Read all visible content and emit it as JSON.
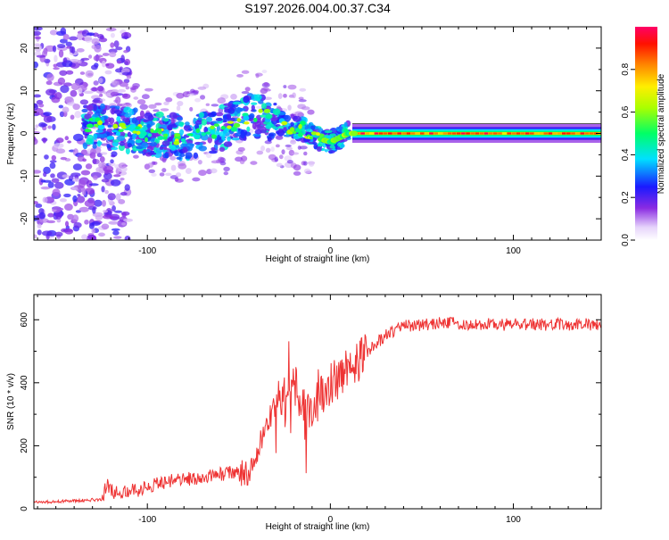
{
  "title": "S197.2026.004.00.37.C34",
  "chart_data": [
    {
      "type": "heatmap",
      "xlabel": "Height of straight line (km)",
      "ylabel": "Frequency (Hz)",
      "xlim": [
        -162,
        148
      ],
      "ylim": [
        -25,
        25
      ],
      "xticks": [
        -100,
        0,
        100
      ],
      "xtick_labels": [
        "-100",
        "0",
        "100"
      ],
      "yticks": [
        -20,
        -10,
        0,
        10,
        20
      ],
      "ytick_labels": [
        "-20",
        "-10",
        "0",
        "10",
        "20"
      ],
      "colorbar": {
        "label": "Normalized spectral amplitude",
        "range": [
          0,
          1
        ],
        "ticks": [
          0.0,
          0.2,
          0.4,
          0.6,
          0.8
        ],
        "tick_labels": [
          "0.0",
          "0.2",
          "0.4",
          "0.6",
          "0.8"
        ]
      },
      "ridge_frequency": {
        "x": [
          -135,
          -120,
          -100,
          -80,
          -60,
          -45,
          -35,
          -25,
          -15,
          -8,
          0,
          5,
          10,
          15,
          148
        ],
        "y": [
          2,
          1.5,
          0,
          -1,
          1,
          4,
          4,
          2,
          1,
          -1,
          -2,
          -1,
          0,
          0,
          0
        ]
      }
    },
    {
      "type": "line",
      "xlabel": "Height of straight line (km)",
      "ylabel": "SNR (10 * v/v)",
      "xlim": [
        -162,
        148
      ],
      "ylim": [
        0,
        680
      ],
      "xticks": [
        -100,
        0,
        100
      ],
      "xtick_labels": [
        "-100",
        "0",
        "100"
      ],
      "yticks": [
        0,
        200,
        400,
        600
      ],
      "ytick_labels": [
        "0",
        "200",
        "400",
        "600"
      ],
      "color": "#ee3333",
      "series": [
        {
          "name": "SNR",
          "x": [
            -162,
            -140,
            -125,
            -122,
            -118,
            -105,
            -95,
            -85,
            -70,
            -60,
            -52,
            -45,
            -40,
            -32,
            -28,
            -24,
            -20,
            -15,
            -10,
            -5,
            0,
            5,
            10,
            20,
            30,
            40,
            60,
            80,
            100,
            120,
            148
          ],
          "y": [
            20,
            25,
            30,
            80,
            50,
            60,
            80,
            90,
            100,
            110,
            115,
            120,
            180,
            300,
            350,
            380,
            400,
            330,
            320,
            360,
            400,
            420,
            440,
            500,
            550,
            580,
            590,
            585,
            585,
            585,
            585
          ]
        }
      ]
    }
  ]
}
